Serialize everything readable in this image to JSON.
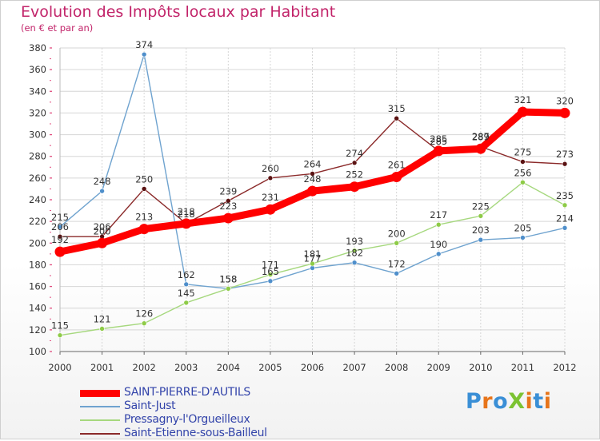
{
  "header": {
    "title": "Evolution des Impôts locaux par Habitant",
    "subtitle": "(en € et par an)"
  },
  "logo": {
    "text": "ProXiti",
    "letter_colors": [
      "#3a8fd6",
      "#e7751b",
      "#3a8fd6",
      "#7cc332",
      "#e7751b",
      "#3a8fd6",
      "#e7751b"
    ]
  },
  "colors": {
    "grid": "#d6d6d6",
    "axis": "#666666",
    "tick_mark": "#e14c7e",
    "text": "#333333"
  },
  "chart_data": {
    "type": "line",
    "title": "Evolution des Impôts locaux par Habitant",
    "subtitle": "(en € et par an)",
    "xlabel": "",
    "ylabel": "",
    "x": [
      2000,
      2001,
      2002,
      2003,
      2004,
      2005,
      2006,
      2007,
      2008,
      2009,
      2010,
      2011,
      2012
    ],
    "ylim": [
      100,
      380
    ],
    "yticks": [
      100,
      120,
      140,
      160,
      180,
      200,
      220,
      240,
      260,
      280,
      300,
      320,
      340,
      360,
      380
    ],
    "grid": true,
    "legend": "bottom-left",
    "series": [
      {
        "name": "Saint-Etienne-sous-Bailleul",
        "color": "#8b2a2a",
        "marker_fill": "#5a1212",
        "style": "thin",
        "values": [
          206,
          206,
          250,
          218,
          239,
          260,
          264,
          274,
          315,
          285,
          289,
          275,
          273
        ]
      },
      {
        "name": "Saint-Just",
        "color": "#6fa3cf",
        "marker_fill": "#4f8fcb",
        "style": "thin",
        "values": [
          215,
          248,
          374,
          162,
          158,
          165,
          177,
          182,
          172,
          190,
          203,
          205,
          214
        ]
      },
      {
        "name": "Pressagny-l'Orgueilleux",
        "color": "#a6d87e",
        "marker_fill": "#8ecb47",
        "style": "thin",
        "values": [
          115,
          121,
          126,
          145,
          158,
          171,
          181,
          193,
          200,
          217,
          225,
          256,
          235
        ]
      },
      {
        "name": "SAINT-PIERRE-D'AUTILS",
        "color": "#ff0000",
        "marker_fill": "#ff0000",
        "style": "thick",
        "values": [
          192,
          200,
          213,
          218,
          223,
          231,
          248,
          252,
          261,
          285,
          287,
          321,
          320
        ]
      }
    ],
    "legend_order": [
      "SAINT-PIERRE-D'AUTILS",
      "Saint-Just",
      "Pressagny-l'Orgueilleux",
      "Saint-Etienne-sous-Bailleul"
    ]
  }
}
